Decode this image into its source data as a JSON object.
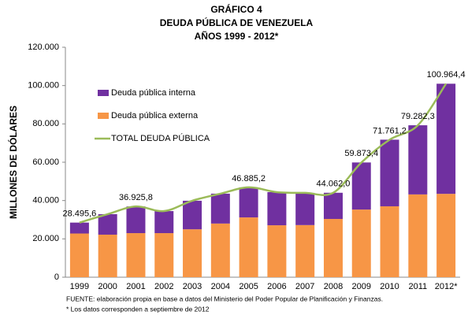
{
  "chart_data": {
    "type": "bar",
    "title": [
      "GRÁFICO 4",
      "DEUDA PÚBLICA DE VENEZUELA",
      "AÑOS 1999 - 2012*"
    ],
    "y_label": "MILLONES DE DÓLARES",
    "categories": [
      "1999",
      "2000",
      "2001",
      "2002",
      "2003",
      "2004",
      "2005",
      "2006",
      "2007",
      "2008",
      "2009",
      "2010",
      "2011",
      "2012*"
    ],
    "series": [
      {
        "name": "Deuda pública externa",
        "color": "#f79646",
        "values": [
          22800,
          22200,
          23000,
          23000,
          25000,
          28000,
          31200,
          27100,
          27200,
          30400,
          35300,
          37000,
          43200,
          43500
        ]
      },
      {
        "name": "Deuda pública interna",
        "color": "#7030a0",
        "values": [
          5695.6,
          10700,
          13925.8,
          11500,
          14900,
          15600,
          15685.2,
          17300,
          16800,
          13662,
          24573.4,
          34761.2,
          36082.3,
          57464.4
        ]
      },
      {
        "name": "TOTAL DEUDA PÚBLICA",
        "color": "#9bbb59",
        "type": "line",
        "values": [
          28495.6,
          32900,
          36925.8,
          34500,
          39900,
          43600,
          46885.2,
          44400,
          44000,
          44062.0,
          59873.4,
          71761.2,
          79282.3,
          100964.4
        ],
        "value_labels": [
          "28.495,6",
          null,
          "36.925,8",
          null,
          null,
          null,
          "46.885,2",
          null,
          null,
          "44.062,0",
          "59.873,4",
          "71.761,2",
          "79.282,3",
          "100.964,4"
        ]
      }
    ],
    "ylim": [
      0,
      120000
    ],
    "yticks": [
      0,
      {
        "value": 20000,
        "label": "20.000"
      },
      {
        "value": 40000,
        "label": "40.000"
      },
      {
        "value": 60000,
        "label": "60.000"
      },
      {
        "value": 80000,
        "label": "80.000"
      },
      {
        "value": 100000,
        "label": "100.000"
      },
      {
        "value": 120000,
        "label": "120.000"
      }
    ],
    "notes": [
      "FUENTE: elaboración propia en base a datos del Ministerio del Poder Popular de Planificación y Finanzas.",
      "* Los datos corresponden a septiembre de 2012"
    ]
  }
}
